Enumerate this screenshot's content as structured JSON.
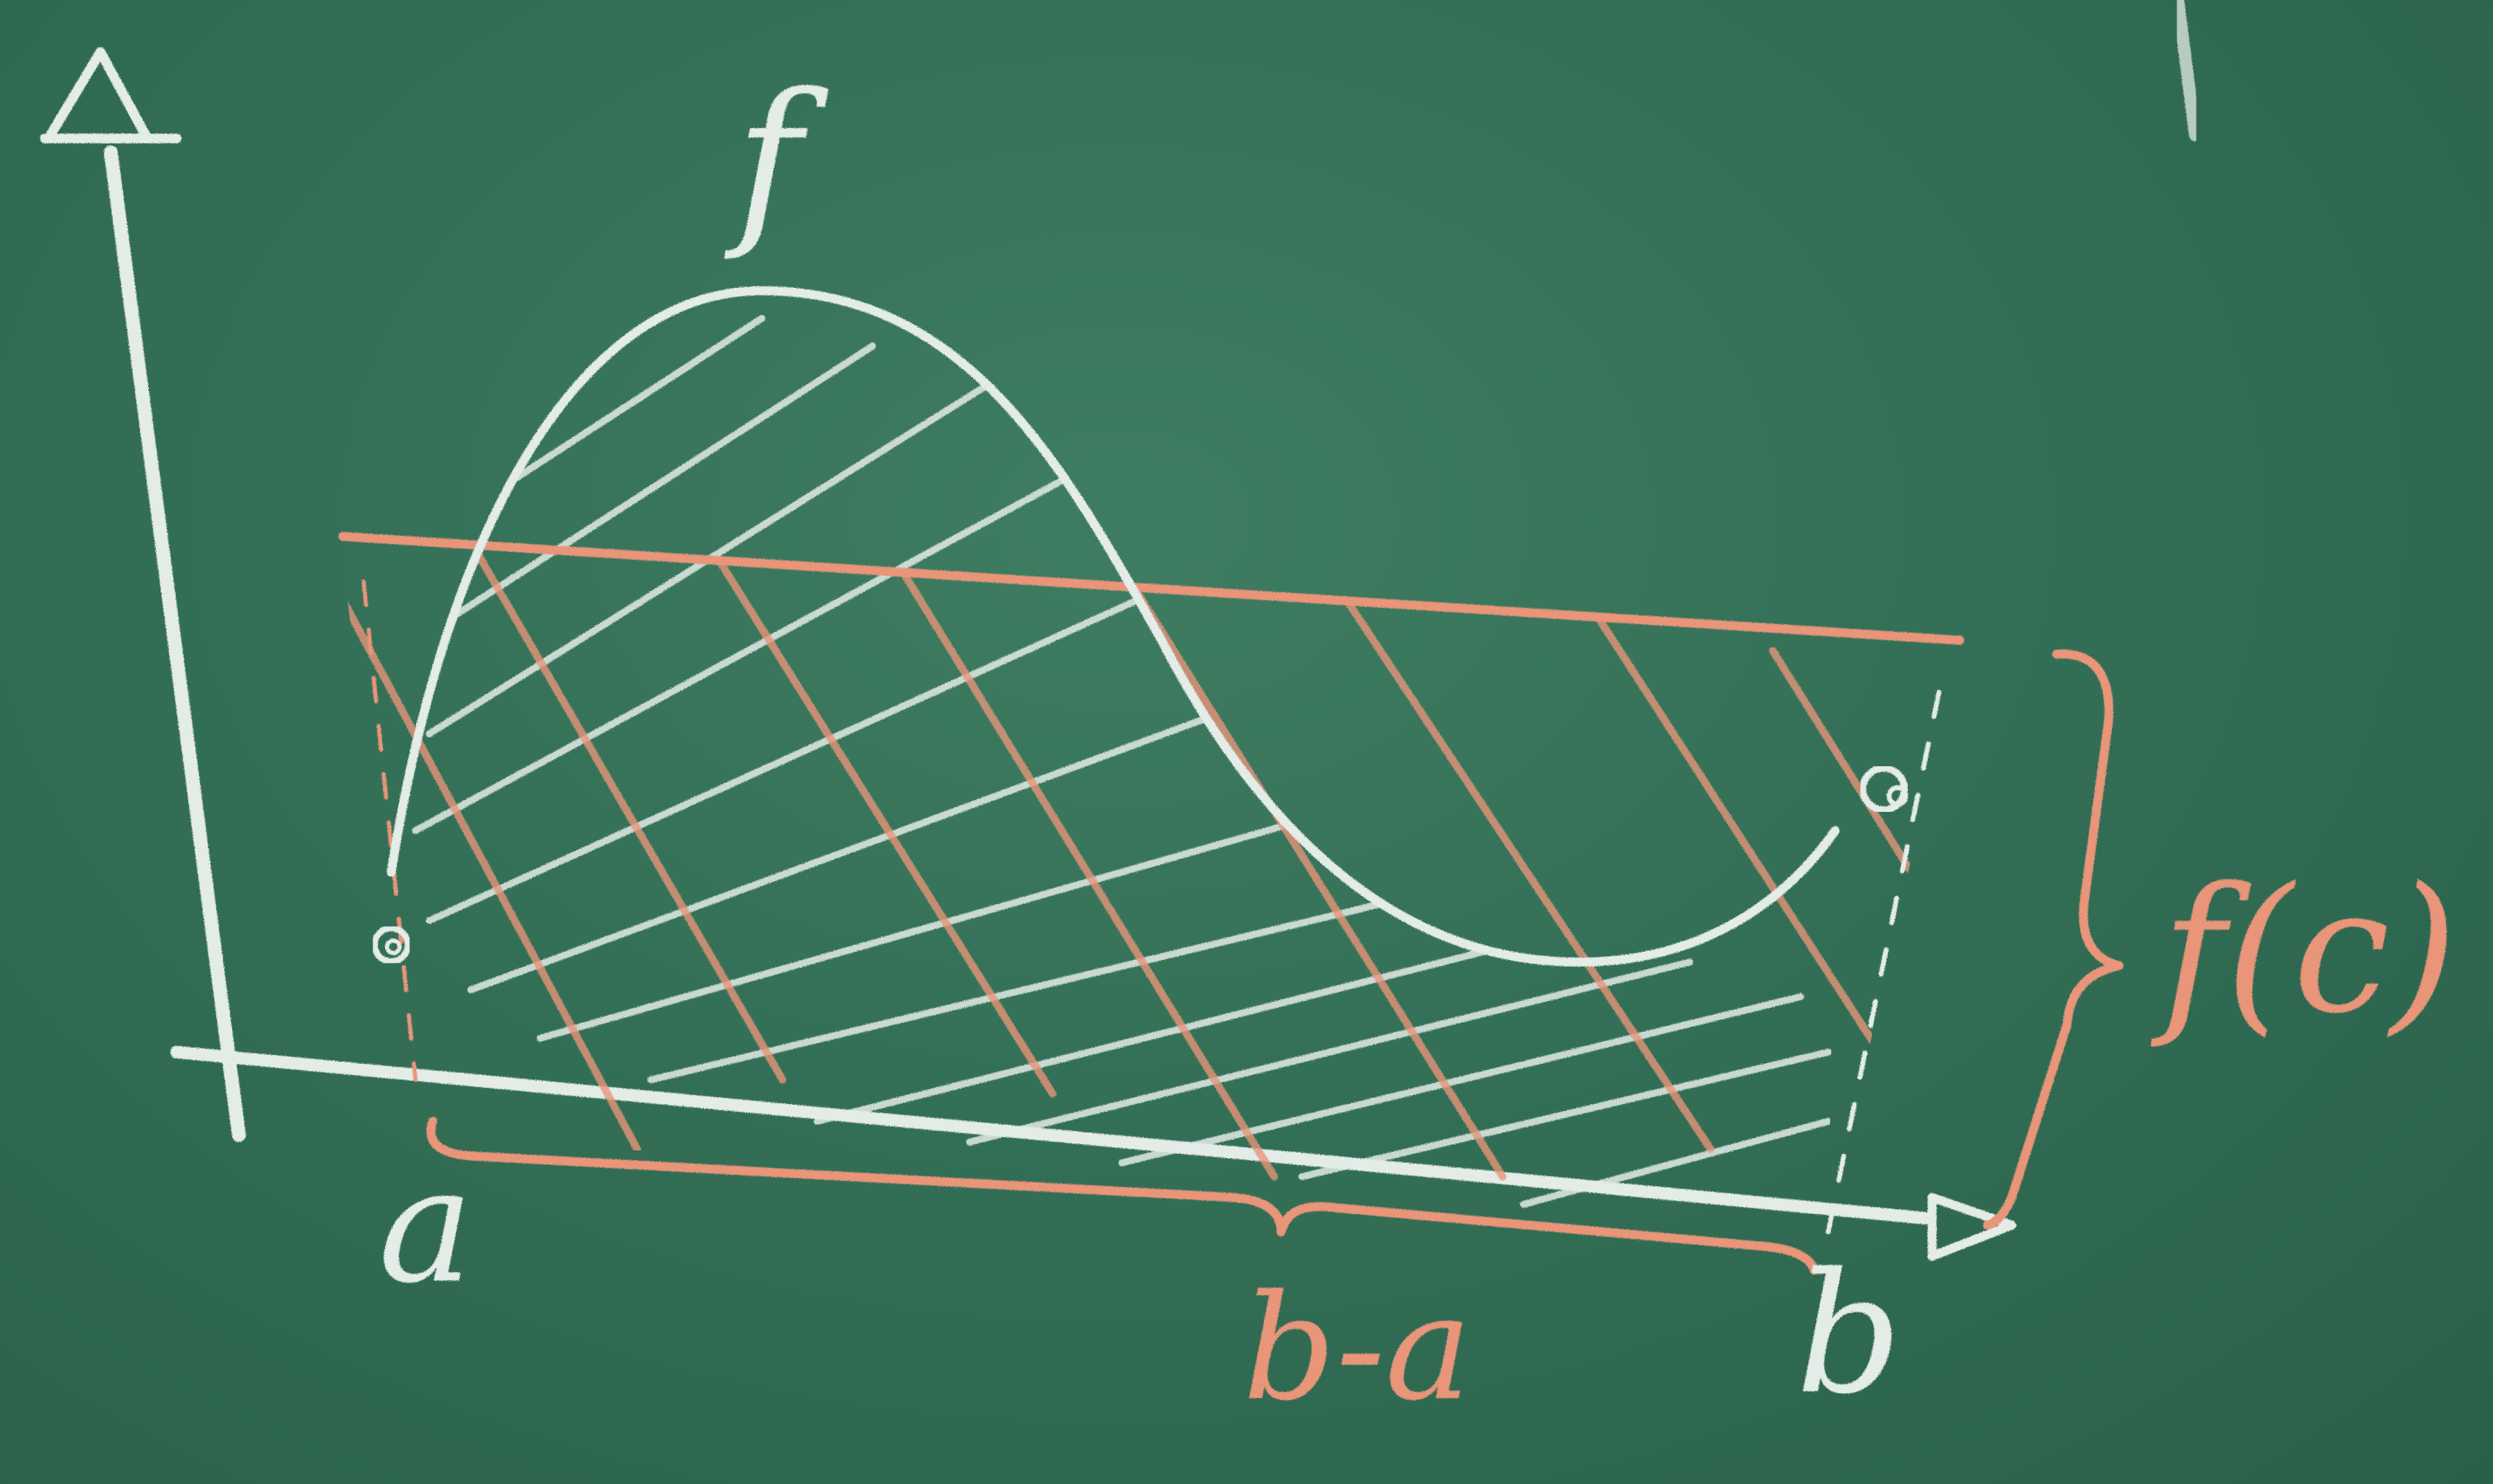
{
  "labels": {
    "function_name": "f",
    "left_bound": "a",
    "right_bound": "b",
    "width_label": "b-a",
    "height_label": "f(c)"
  },
  "colors": {
    "board": "#2f6b52",
    "white_chalk": "#e4ece8",
    "orange_chalk": "#e8957a"
  }
}
